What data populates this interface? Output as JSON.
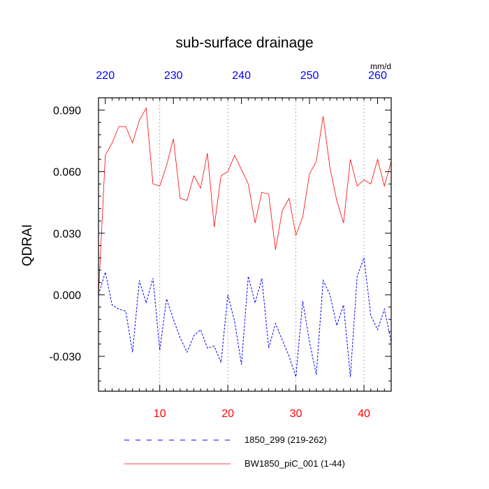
{
  "chart_data": {
    "type": "line",
    "title": "sub-surface drainage",
    "ylabel": "QDRAI",
    "units_label": "mm/d",
    "x": [
      1,
      2,
      3,
      4,
      5,
      6,
      7,
      8,
      9,
      10,
      11,
      12,
      13,
      14,
      15,
      16,
      17,
      18,
      19,
      20,
      21,
      22,
      23,
      24,
      25,
      26,
      27,
      28,
      29,
      30,
      31,
      32,
      33,
      34,
      35,
      36,
      37,
      38,
      39,
      40,
      41,
      42,
      43,
      44
    ],
    "xlim": [
      1,
      44
    ],
    "ylim": [
      -0.047,
      0.096
    ],
    "bottom_axis": {
      "color": "#ff0000",
      "ticks": [
        10,
        20,
        30,
        40
      ],
      "tick_labels": [
        "10",
        "20",
        "30",
        "40"
      ]
    },
    "top_axis": {
      "color": "#0000ff",
      "ticks": [
        2,
        12,
        22,
        32,
        42
      ],
      "tick_labels": [
        "220",
        "230",
        "240",
        "250",
        "260"
      ]
    },
    "y_ticks": [
      0.09,
      0.06,
      0.03,
      0.0,
      -0.03
    ],
    "y_tick_labels": [
      "0.090",
      "0.060",
      "0.030",
      "0.000",
      "-0.030"
    ],
    "gridlines_x": [
      10,
      20,
      30,
      40
    ],
    "series": [
      {
        "name": "BW1850_piC_001 (1-44)",
        "color": "#ff0000",
        "dash": "solid",
        "values": [
          0.0,
          0.068,
          0.074,
          0.082,
          0.082,
          0.074,
          0.085,
          0.091,
          0.054,
          0.053,
          0.063,
          0.076,
          0.047,
          0.046,
          0.058,
          0.052,
          0.069,
          0.033,
          0.058,
          0.06,
          0.068,
          0.061,
          0.054,
          0.035,
          0.05,
          0.049,
          0.022,
          0.041,
          0.047,
          0.029,
          0.038,
          0.059,
          0.065,
          0.087,
          0.062,
          0.046,
          0.035,
          0.066,
          0.053,
          0.056,
          0.054,
          0.066,
          0.053,
          0.065
        ]
      },
      {
        "name": "1850_299 (219-262)",
        "color": "#0000ff",
        "dash": "dashed",
        "values": [
          0.0,
          0.011,
          -0.005,
          -0.007,
          -0.008,
          -0.028,
          0.007,
          -0.004,
          0.008,
          -0.027,
          -0.002,
          -0.012,
          -0.021,
          -0.028,
          -0.02,
          -0.017,
          -0.026,
          -0.025,
          -0.033,
          0.0,
          -0.013,
          -0.034,
          0.009,
          -0.004,
          0.008,
          -0.026,
          -0.014,
          -0.022,
          -0.03,
          -0.04,
          -0.003,
          -0.023,
          -0.039,
          0.007,
          0.0,
          -0.015,
          -0.005,
          -0.04,
          0.009,
          0.018,
          -0.01,
          -0.017,
          -0.007,
          -0.023
        ]
      }
    ],
    "legend": {
      "position": "bottom",
      "entries": [
        "1850_299 (219-262)",
        "BW1850_piC_001 (1-44)"
      ]
    }
  }
}
